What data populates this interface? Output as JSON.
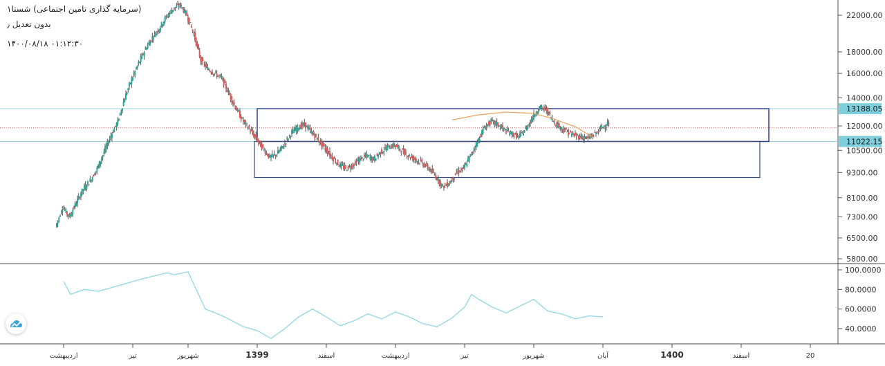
{
  "header": {
    "title": "(سرمایه گذاری تامین اجتماعی) شستا۱",
    "adjustment": "بدون تعدیل ٫",
    "datetime": "۱۴۰۰/۰۸/۱۸   ۰۱:۱۲:۳۰"
  },
  "chart_data": {
    "type": "candlestick",
    "price_axis": {
      "ticks": [
        "22000.00",
        "18000.00",
        "16000.00",
        "14000.00",
        "12000.00",
        "10500.00",
        "9300.00",
        "8100.00",
        "7300.00",
        "6500.00",
        "5800.00"
      ],
      "tick_values": [
        22000,
        18000,
        16000,
        14000,
        12000,
        10500,
        9300,
        8100,
        7300,
        6500,
        5800
      ],
      "scale": "log"
    },
    "price_labels": [
      {
        "text": "13188.05",
        "value": 13188.05
      },
      {
        "text": "11022.15",
        "value": 11022.15
      }
    ],
    "current_price_line": 11880,
    "rectangles": [
      {
        "x_from": 1.0,
        "x_to": 8.4,
        "y_from": 11022.15,
        "y_to": 13188.05
      },
      {
        "x_from": 0.96,
        "x_to": 8.27,
        "y_from": 9050,
        "y_to": 11022.15
      }
    ],
    "time_axis": {
      "labels": [
        "اردیبهشت",
        "تیر",
        "شهریور",
        "1399",
        "اسفند",
        "اردیبهشت",
        "تیر",
        "شهریور",
        "آبان",
        "1400",
        "اسفند",
        "20"
      ],
      "positions": [
        -1.8,
        -0.8,
        0,
        1,
        2,
        3,
        4,
        5,
        6,
        7,
        8,
        9
      ],
      "bold": [
        false,
        false,
        false,
        true,
        false,
        false,
        false,
        false,
        false,
        true,
        false,
        false
      ]
    },
    "close_series": [
      [
        -1.9,
        6900
      ],
      [
        -1.8,
        7700
      ],
      [
        -1.7,
        7300
      ],
      [
        -1.6,
        7900
      ],
      [
        -1.5,
        8500
      ],
      [
        -1.4,
        8900
      ],
      [
        -1.3,
        9500
      ],
      [
        -1.2,
        10400
      ],
      [
        -1.1,
        11400
      ],
      [
        -1.0,
        12300
      ],
      [
        -0.9,
        14000
      ],
      [
        -0.8,
        15500
      ],
      [
        -0.7,
        16900
      ],
      [
        -0.6,
        18300
      ],
      [
        -0.5,
        19500
      ],
      [
        -0.4,
        20500
      ],
      [
        -0.3,
        21800
      ],
      [
        -0.2,
        22800
      ],
      [
        -0.1,
        23300
      ],
      [
        0.0,
        22000
      ],
      [
        0.1,
        19800
      ],
      [
        0.2,
        17200
      ],
      [
        0.3,
        16400
      ],
      [
        0.4,
        16000
      ],
      [
        0.5,
        15600
      ],
      [
        0.6,
        14400
      ],
      [
        0.7,
        13300
      ],
      [
        0.8,
        12400
      ],
      [
        0.9,
        11800
      ],
      [
        1.0,
        11200
      ],
      [
        1.1,
        10600
      ],
      [
        1.2,
        10100
      ],
      [
        1.3,
        10300
      ],
      [
        1.4,
        10800
      ],
      [
        1.5,
        11500
      ],
      [
        1.6,
        11900
      ],
      [
        1.7,
        12100
      ],
      [
        1.8,
        11600
      ],
      [
        1.9,
        11100
      ],
      [
        2.0,
        10600
      ],
      [
        2.1,
        10100
      ],
      [
        2.2,
        9700
      ],
      [
        2.3,
        9500
      ],
      [
        2.4,
        9700
      ],
      [
        2.5,
        10000
      ],
      [
        2.6,
        10200
      ],
      [
        2.7,
        10000
      ],
      [
        2.8,
        10400
      ],
      [
        2.9,
        10700
      ],
      [
        3.0,
        10800
      ],
      [
        3.1,
        10500
      ],
      [
        3.2,
        10200
      ],
      [
        3.3,
        10000
      ],
      [
        3.4,
        9800
      ],
      [
        3.5,
        9500
      ],
      [
        3.6,
        9100
      ],
      [
        3.7,
        8600
      ],
      [
        3.8,
        8800
      ],
      [
        3.9,
        9300
      ],
      [
        4.0,
        9500
      ],
      [
        4.1,
        10200
      ],
      [
        4.2,
        11000
      ],
      [
        4.3,
        11900
      ],
      [
        4.4,
        12300
      ],
      [
        4.5,
        12100
      ],
      [
        4.6,
        11700
      ],
      [
        4.7,
        11500
      ],
      [
        4.8,
        11300
      ],
      [
        4.9,
        11800
      ],
      [
        5.0,
        12600
      ],
      [
        5.1,
        13300
      ],
      [
        5.2,
        13100
      ],
      [
        5.3,
        12300
      ],
      [
        5.4,
        11900
      ],
      [
        5.5,
        11600
      ],
      [
        5.6,
        11400
      ],
      [
        5.7,
        11300
      ],
      [
        5.8,
        11200
      ],
      [
        5.9,
        11500
      ],
      [
        6.0,
        11900
      ],
      [
        6.1,
        12200
      ]
    ],
    "moving_average": [
      [
        3.82,
        12400
      ],
      [
        4.2,
        12750
      ],
      [
        4.6,
        12950
      ],
      [
        5.0,
        12850
      ],
      [
        5.3,
        12450
      ],
      [
        5.6,
        11950
      ],
      [
        5.85,
        11300
      ]
    ],
    "indicator": {
      "ticks": [
        "100.0000",
        "80.0000",
        "60.0000",
        "40.0000"
      ],
      "tick_values": [
        100,
        80,
        60,
        40
      ],
      "values": [
        [
          -1.8,
          88
        ],
        [
          -1.7,
          75
        ],
        [
          -1.5,
          80
        ],
        [
          -1.3,
          78
        ],
        [
          -1.0,
          84
        ],
        [
          -0.6,
          92
        ],
        [
          -0.3,
          97
        ],
        [
          -0.2,
          95
        ],
        [
          0.0,
          98
        ],
        [
          0.25,
          60
        ],
        [
          0.5,
          53
        ],
        [
          0.8,
          42
        ],
        [
          1.0,
          38
        ],
        [
          1.2,
          30
        ],
        [
          1.4,
          40
        ],
        [
          1.6,
          52
        ],
        [
          1.8,
          60
        ],
        [
          2.0,
          52
        ],
        [
          2.2,
          43
        ],
        [
          2.4,
          48
        ],
        [
          2.6,
          55
        ],
        [
          2.8,
          50
        ],
        [
          3.0,
          57
        ],
        [
          3.2,
          52
        ],
        [
          3.4,
          45
        ],
        [
          3.6,
          42
        ],
        [
          3.8,
          50
        ],
        [
          4.0,
          62
        ],
        [
          4.1,
          75
        ],
        [
          4.2,
          70
        ],
        [
          4.4,
          62
        ],
        [
          4.6,
          56
        ],
        [
          4.8,
          63
        ],
        [
          5.0,
          70
        ],
        [
          5.2,
          58
        ],
        [
          5.4,
          55
        ],
        [
          5.6,
          50
        ],
        [
          5.8,
          53
        ],
        [
          6.0,
          52
        ]
      ]
    }
  }
}
